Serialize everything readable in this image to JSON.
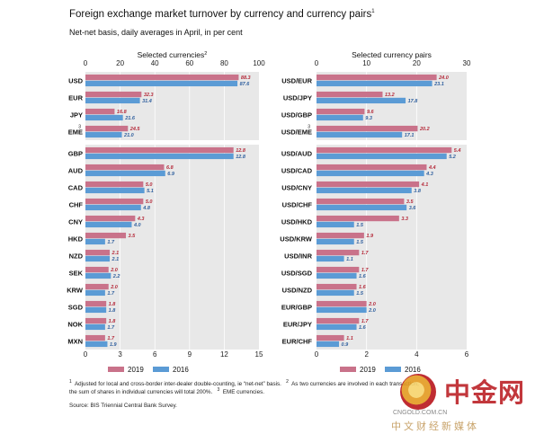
{
  "title": "Foreign exchange market turnover by currency and currency pairs",
  "title_note": "1",
  "subtitle": "Net-net basis, daily averages in April, in per cent",
  "legend": {
    "s2019": "2019",
    "s2016": "2016"
  },
  "colors": {
    "s2019": "#c9728a",
    "s2016": "#5b9bd5",
    "panel_bg": "#e8e8e8",
    "grid": "#ffffff",
    "label2019": "#b52a3a",
    "label2016": "#2f5f9e"
  },
  "footnotes": {
    "line1": "Adjusted for local and cross-border inter-dealer double-counting, ie “net-net” basis.",
    "n1": "1",
    "n2": "2",
    "line1b": "As two currencies are involved in each transaction,",
    "line2": "the sum of shares in individual currencies will total 200%.",
    "n3": "3",
    "line2b": "EME currencies."
  },
  "source": "Source: BIS Triennial Central Bank Survey.",
  "watermark": {
    "brand": "中金网",
    "url": "CNGOLD.COM.CN",
    "tagline": "中文财经新媒体"
  },
  "chart_data": [
    {
      "type": "bar",
      "orientation": "horizontal",
      "title": "Selected currencies",
      "title_note": "2",
      "xlim": [
        0,
        100
      ],
      "ticks": [
        0,
        20,
        40,
        60,
        80,
        100
      ],
      "categories": [
        "USD",
        "EUR",
        "JPY",
        "EME"
      ],
      "notes": {
        "EME": "3"
      },
      "series": [
        {
          "name": "2019",
          "values": [
            88.3,
            32.3,
            16.8,
            24.5
          ]
        },
        {
          "name": "2016",
          "values": [
            87.6,
            31.4,
            21.6,
            21.0
          ]
        }
      ]
    },
    {
      "type": "bar",
      "orientation": "horizontal",
      "title": "",
      "xlim": [
        0,
        15
      ],
      "ticks": [
        0,
        3,
        6,
        9,
        12,
        15
      ],
      "categories": [
        "GBP",
        "AUD",
        "CAD",
        "CHF",
        "CNY",
        "HKD",
        "NZD",
        "SEK",
        "KRW",
        "SGD",
        "NOK",
        "MXN"
      ],
      "series": [
        {
          "name": "2019",
          "values": [
            12.8,
            6.8,
            5.0,
            5.0,
            4.3,
            3.5,
            2.1,
            2.0,
            2.0,
            1.8,
            1.8,
            1.7
          ]
        },
        {
          "name": "2016",
          "values": [
            12.8,
            6.9,
            5.1,
            4.8,
            4.0,
            1.7,
            2.1,
            2.2,
            1.7,
            1.8,
            1.7,
            1.9
          ]
        }
      ]
    },
    {
      "type": "bar",
      "orientation": "horizontal",
      "title": "Selected currency pairs",
      "xlim": [
        0,
        30
      ],
      "ticks": [
        0,
        10,
        20,
        30
      ],
      "categories": [
        "USD/EUR",
        "USD/JPY",
        "USD/GBP",
        "USD/EME"
      ],
      "notes": {
        "USD/EME": "3"
      },
      "series": [
        {
          "name": "2019",
          "values": [
            24.0,
            13.2,
            9.6,
            20.2
          ]
        },
        {
          "name": "2016",
          "values": [
            23.1,
            17.8,
            9.3,
            17.1
          ]
        }
      ]
    },
    {
      "type": "bar",
      "orientation": "horizontal",
      "title": "",
      "xlim": [
        0,
        6
      ],
      "ticks": [
        0,
        2,
        4,
        6
      ],
      "categories": [
        "USD/AUD",
        "USD/CAD",
        "USD/CNY",
        "USD/CHF",
        "USD/HKD",
        "USD/KRW",
        "USD/INR",
        "USD/SGD",
        "USD/NZD",
        "EUR/GBP",
        "EUR/JPY",
        "EUR/CHF"
      ],
      "series": [
        {
          "name": "2019",
          "values": [
            5.4,
            4.4,
            4.1,
            3.5,
            3.3,
            1.9,
            1.7,
            1.7,
            1.6,
            2.0,
            1.7,
            1.1
          ]
        },
        {
          "name": "2016",
          "values": [
            5.2,
            4.3,
            3.8,
            3.6,
            1.5,
            1.5,
            1.1,
            1.6,
            1.5,
            2.0,
            1.6,
            0.9
          ]
        }
      ]
    }
  ]
}
